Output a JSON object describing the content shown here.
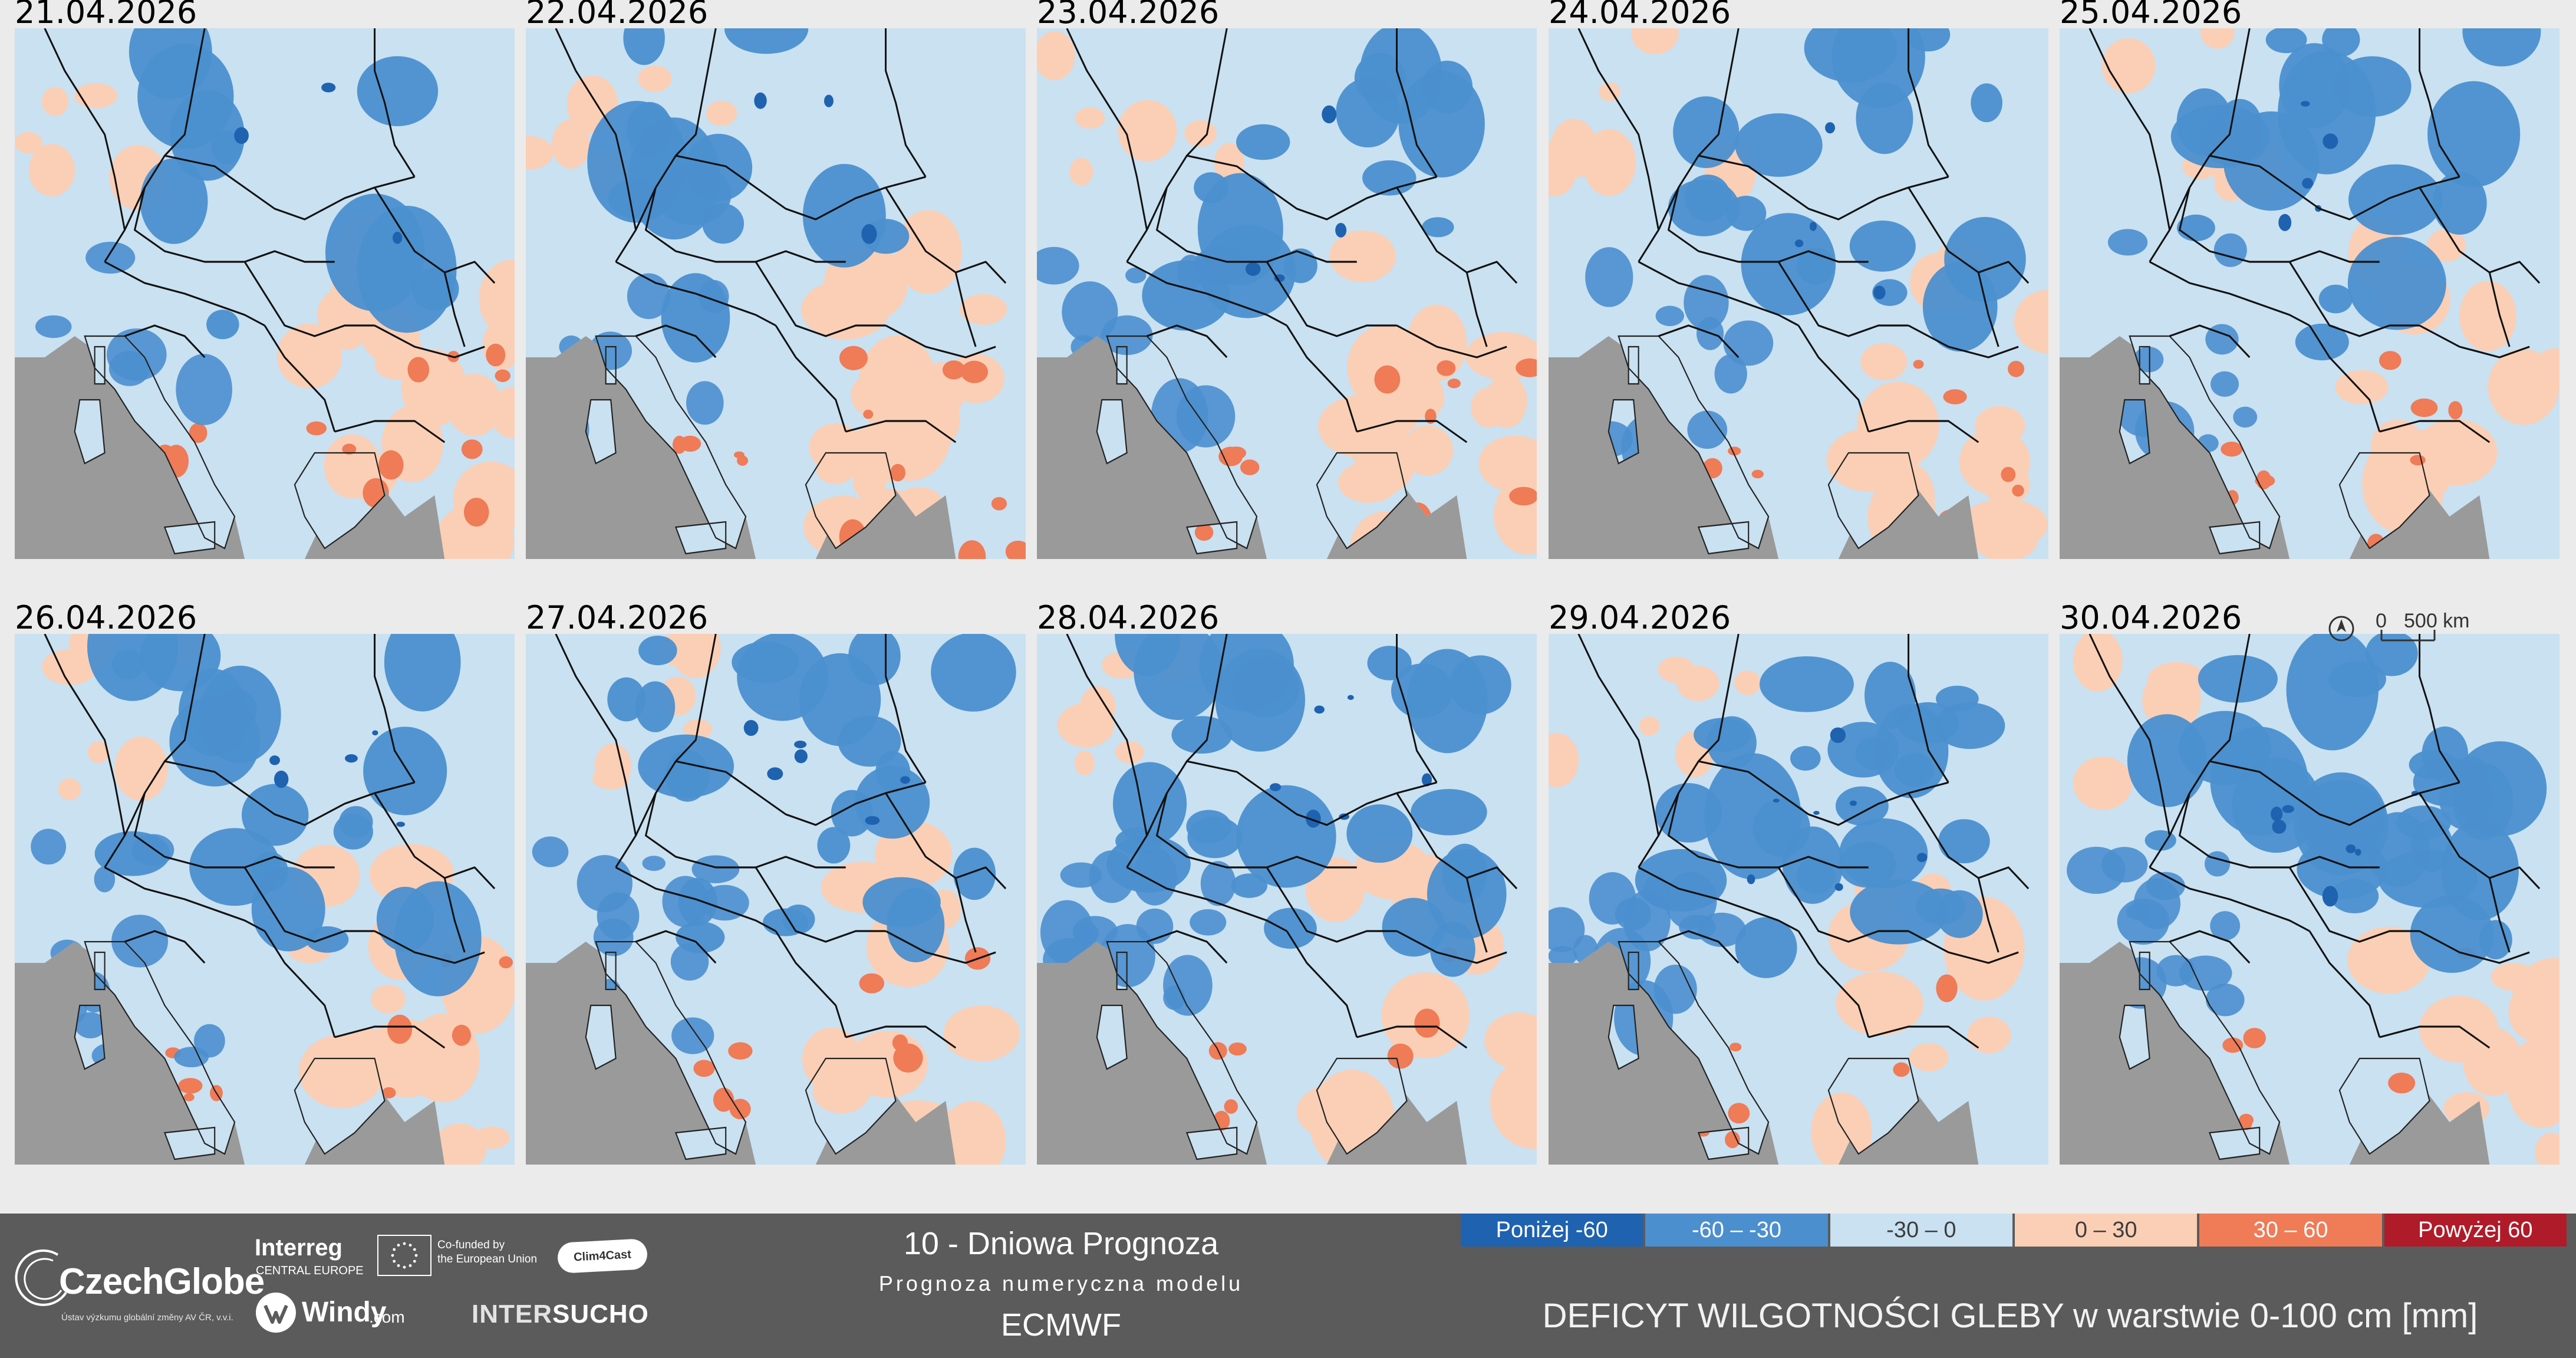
{
  "panels": [
    {
      "date": "21.04.2026",
      "col": 0,
      "row": 0
    },
    {
      "date": "22.04.2026",
      "col": 1,
      "row": 0
    },
    {
      "date": "23.04.2026",
      "col": 2,
      "row": 0
    },
    {
      "date": "24.04.2026",
      "col": 3,
      "row": 0
    },
    {
      "date": "25.04.2026",
      "col": 4,
      "row": 0
    },
    {
      "date": "26.04.2026",
      "col": 0,
      "row": 1
    },
    {
      "date": "27.04.2026",
      "col": 1,
      "row": 1
    },
    {
      "date": "28.04.2026",
      "col": 2,
      "row": 1
    },
    {
      "date": "29.04.2026",
      "col": 3,
      "row": 1
    },
    {
      "date": "30.04.2026",
      "col": 4,
      "row": 1
    }
  ],
  "scalebar": {
    "zero": "0",
    "label": "500 km"
  },
  "footer": {
    "czechglobe": {
      "name": "CzechGlobe",
      "subtitle": "Ústav výzkumu globální změny AV ČR, v.v.i."
    },
    "interreg": {
      "name": "Interreg",
      "subtitle": "CENTRAL EUROPE"
    },
    "eu": {
      "text": "Co-funded by\nthe European Union"
    },
    "clim4cast": {
      "name": "Clim4Cast"
    },
    "windy": {
      "name": "Windy",
      "domain": ".com"
    },
    "intersucho": {
      "part1": "INTER",
      "part2": "SUCHO"
    },
    "forecast": {
      "title": "10 - Dniowa Prognoza",
      "subtitle": "Prognoza numeryczna modelu",
      "model": "ECMWF"
    },
    "legend": [
      {
        "label": "Poniżej -60",
        "color": "#1f62b0"
      },
      {
        "label": "-60 – -30",
        "color": "#4b8fcf"
      },
      {
        "label": "-30 – 0",
        "color": "#c9e1f1"
      },
      {
        "label": "0 – 30",
        "color": "#fbcfb5"
      },
      {
        "label": "30 – 60",
        "color": "#ef7b57"
      },
      {
        "label": "Powyżej 60",
        "color": "#b01b29"
      }
    ],
    "deficit_title": "DEFICYT WILGOTNOŚCI GLEBY w warstwie 0-100 cm [mm]"
  },
  "colors": {
    "sea": "#9a9a9a",
    "background": "#ebebeb",
    "footer": "#5b5b5b"
  }
}
